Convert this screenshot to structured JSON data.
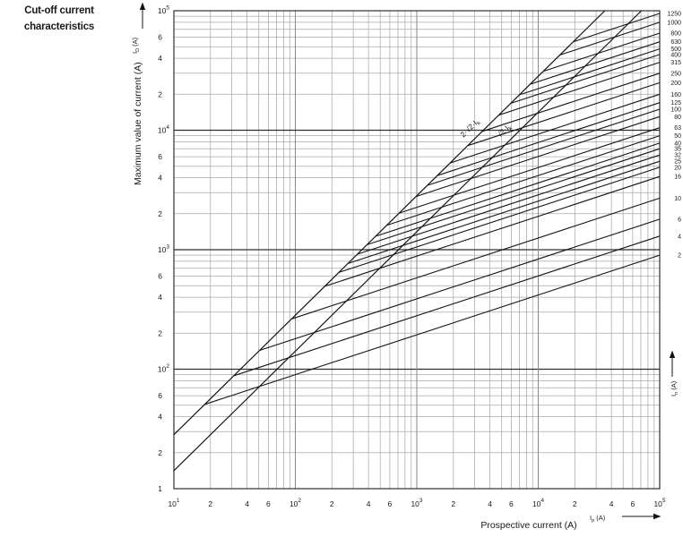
{
  "header": {
    "title_line1": "Cut-off current",
    "title_line2": "characteristics"
  },
  "colors": {
    "curve": "#141414",
    "grid_minor": "#a9a9a9",
    "grid_major_vertical": "#8a8a8a",
    "grid_major_horizontal": "#2f2f2f",
    "border": "#2f2f2f",
    "text": "#1a1a1a"
  },
  "chart_data": {
    "type": "line",
    "title": "Cut-off current characteristics",
    "x_axis": {
      "label": "Prospective current (A)",
      "symbol": {
        "base": "I",
        "sub": "p",
        "unit": "(A)"
      },
      "scale": "log",
      "min": 10,
      "max": 100000,
      "ticks": [
        {
          "v": 10,
          "t": "10",
          "sup": "1"
        },
        {
          "v": 20,
          "t": "2"
        },
        {
          "v": 40,
          "t": "4"
        },
        {
          "v": 60,
          "t": "6"
        },
        {
          "v": 100,
          "t": "10",
          "sup": "2"
        },
        {
          "v": 200,
          "t": "2"
        },
        {
          "v": 400,
          "t": "4"
        },
        {
          "v": 600,
          "t": "6"
        },
        {
          "v": 1000,
          "t": "10",
          "sup": "3"
        },
        {
          "v": 2000,
          "t": "2"
        },
        {
          "v": 4000,
          "t": "4"
        },
        {
          "v": 6000,
          "t": "6"
        },
        {
          "v": 10000,
          "t": "10",
          "sup": "4"
        },
        {
          "v": 20000,
          "t": "2"
        },
        {
          "v": 40000,
          "t": "4"
        },
        {
          "v": 60000,
          "t": "6"
        },
        {
          "v": 100000,
          "t": "10",
          "sup": "5"
        }
      ]
    },
    "y_axis": {
      "label": "Maximum value of current (A)",
      "symbol": {
        "base": "I",
        "sub": "D",
        "unit": "(A)"
      },
      "scale": "log",
      "min": 10,
      "max": 100000,
      "ticks": [
        {
          "v": 100000,
          "t": "10",
          "sup": "5"
        },
        {
          "v": 60000,
          "t": "6"
        },
        {
          "v": 40000,
          "t": "4"
        },
        {
          "v": 20000,
          "t": "2"
        },
        {
          "v": 10000,
          "t": "10",
          "sup": "4"
        },
        {
          "v": 6000,
          "t": "6"
        },
        {
          "v": 4000,
          "t": "4"
        },
        {
          "v": 2000,
          "t": "2"
        },
        {
          "v": 1000,
          "t": "10",
          "sup": "3"
        },
        {
          "v": 600,
          "t": "6"
        },
        {
          "v": 400,
          "t": "4"
        },
        {
          "v": 200,
          "t": "2"
        },
        {
          "v": 100,
          "t": "10",
          "sup": "2"
        },
        {
          "v": 60,
          "t": "6"
        },
        {
          "v": 40,
          "t": "4"
        },
        {
          "v": 20,
          "t": "2"
        },
        {
          "v": 10,
          "t": "1"
        }
      ]
    },
    "right_axis": {
      "symbol": {
        "base": "I",
        "sub": "n",
        "unit": "(A)"
      }
    },
    "reference_lines": [
      {
        "label": "2·√2·I",
        "label_sub": "k",
        "factor": 2.8284
      },
      {
        "label": "√2·I",
        "label_sub": "k",
        "factor": 1.4142
      }
    ],
    "rating_line_slope": 0.33333,
    "fuse_curves": [
      {
        "rating": "1250",
        "cutoff_at_max_prospective": 95000
      },
      {
        "rating": "1000",
        "cutoff_at_max_prospective": 80000
      },
      {
        "rating": "800",
        "cutoff_at_max_prospective": 65000
      },
      {
        "rating": "630",
        "cutoff_at_max_prospective": 55000
      },
      {
        "rating": "500",
        "cutoff_at_max_prospective": 48000
      },
      {
        "rating": "400",
        "cutoff_at_max_prospective": 43000
      },
      {
        "rating": "315",
        "cutoff_at_max_prospective": 37000
      },
      {
        "rating": "250",
        "cutoff_at_max_prospective": 30000
      },
      {
        "rating": "200",
        "cutoff_at_max_prospective": 25000
      },
      {
        "rating": "160",
        "cutoff_at_max_prospective": 20000
      },
      {
        "rating": "125",
        "cutoff_at_max_prospective": 17000
      },
      {
        "rating": "100",
        "cutoff_at_max_prospective": 15000
      },
      {
        "rating": "80",
        "cutoff_at_max_prospective": 13000
      },
      {
        "rating": "63",
        "cutoff_at_max_prospective": 10500
      },
      {
        "rating": "50",
        "cutoff_at_max_prospective": 9000
      },
      {
        "rating": "40",
        "cutoff_at_max_prospective": 7800
      },
      {
        "rating": "35",
        "cutoff_at_max_prospective": 7000
      },
      {
        "rating": "32",
        "cutoff_at_max_prospective": 6200
      },
      {
        "rating": "25",
        "cutoff_at_max_prospective": 5500
      },
      {
        "rating": "20",
        "cutoff_at_max_prospective": 4900
      },
      {
        "rating": "16",
        "cutoff_at_max_prospective": 4100
      },
      {
        "rating": "10",
        "cutoff_at_max_prospective": 2700
      },
      {
        "rating": "6",
        "cutoff_at_max_prospective": 1800
      },
      {
        "rating": "4",
        "cutoff_at_max_prospective": 1300
      },
      {
        "rating": "2",
        "cutoff_at_max_prospective": 900
      }
    ],
    "grid": true,
    "legend_position": "right"
  }
}
